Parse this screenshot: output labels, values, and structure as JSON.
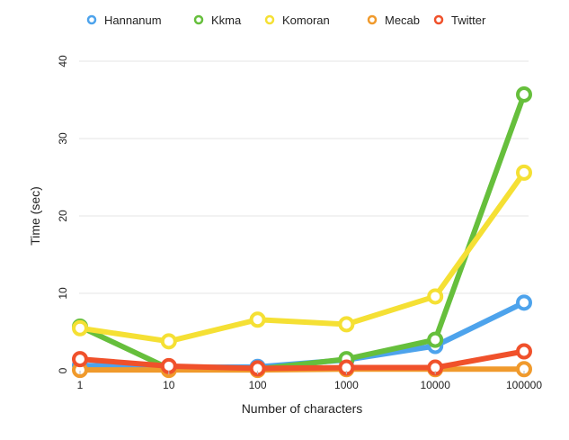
{
  "chart_data": {
    "type": "line",
    "title": "",
    "xlabel": "Number of characters",
    "ylabel": "Time (sec)",
    "categories": [
      "1",
      "10",
      "100",
      "1000",
      "10000",
      "100000"
    ],
    "ylim": [
      0,
      40
    ],
    "yticks": [
      "0",
      "10",
      "20",
      "30",
      "40"
    ],
    "grid": true,
    "legend_position": "top",
    "series": [
      {
        "name": "Hannanum",
        "color": "#4da3ec",
        "values": [
          0.7,
          0.4,
          0.5,
          1.4,
          3.2,
          8.8
        ]
      },
      {
        "name": "Kkma",
        "color": "#66bf3c",
        "values": [
          5.7,
          0.3,
          0.2,
          1.5,
          4.0,
          35.7
        ]
      },
      {
        "name": "Komoran",
        "color": "#f5e034",
        "values": [
          5.5,
          3.8,
          6.6,
          6.0,
          9.6,
          25.6
        ]
      },
      {
        "name": "Mecab",
        "color": "#f09a2c",
        "values": [
          0.1,
          0.1,
          0.1,
          0.2,
          0.2,
          0.2
        ]
      },
      {
        "name": "Twitter",
        "color": "#f0512b",
        "values": [
          1.5,
          0.6,
          0.3,
          0.4,
          0.4,
          2.5
        ]
      }
    ]
  }
}
